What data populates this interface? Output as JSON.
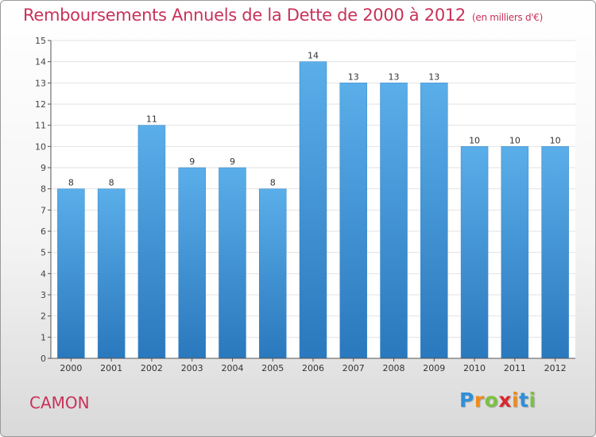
{
  "header": {
    "title": "Remboursements Annuels de la Dette de 2000 à 2012",
    "unit": "(en milliers d'€)"
  },
  "footer": {
    "commune": "CAMON",
    "logo": {
      "letters": [
        "P",
        "r",
        "o",
        "x",
        "i",
        "t",
        "i"
      ],
      "colors": [
        "#2f8fd8",
        "#f08a1c",
        "#7cc142",
        "#d9262e",
        "#f08a1c",
        "#2f8fd8",
        "#7cc142"
      ]
    }
  },
  "colors": {
    "bar_light": "#5aaee9",
    "bar_dark": "#2a78bd",
    "title": "#c8325a",
    "grid": "#e2e2e2"
  },
  "chart_data": {
    "type": "bar",
    "categories": [
      "2000",
      "2001",
      "2002",
      "2003",
      "2004",
      "2005",
      "2006",
      "2007",
      "2008",
      "2009",
      "2010",
      "2011",
      "2012"
    ],
    "values": [
      8,
      8,
      11,
      9,
      9,
      8,
      14,
      13,
      13,
      13,
      10,
      10,
      10
    ],
    "ylim": [
      0,
      15
    ],
    "yticks": [
      "0",
      "1",
      "2",
      "3",
      "4",
      "5",
      "6",
      "7",
      "8",
      "9",
      "10",
      "11",
      "12",
      "13",
      "14",
      "15"
    ],
    "grid": true,
    "legend": "none"
  }
}
